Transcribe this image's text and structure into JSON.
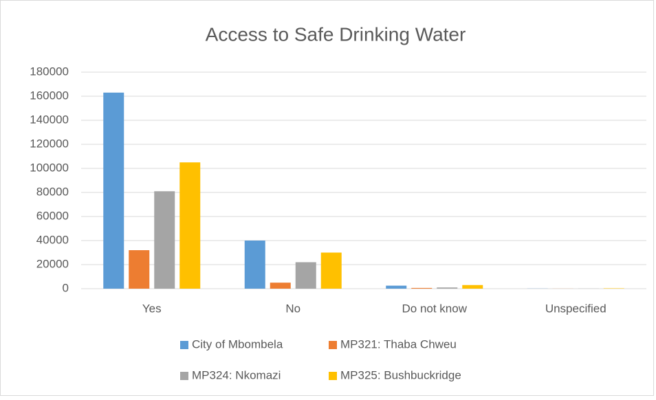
{
  "chart_data": {
    "type": "bar",
    "title": "Access to Safe Drinking Water",
    "categories": [
      "Yes",
      "No",
      "Do not know",
      "Unspecified"
    ],
    "series": [
      {
        "name": "City of Mbombela",
        "color": "#5b9bd5",
        "values": [
          163000,
          40000,
          2500,
          100
        ]
      },
      {
        "name": "MP321: Thaba Chweu",
        "color": "#ed7d31",
        "values": [
          32000,
          5000,
          600,
          50
        ]
      },
      {
        "name": "MP324: Nkomazi",
        "color": "#a5a5a5",
        "values": [
          81000,
          22000,
          1000,
          100
        ]
      },
      {
        "name": "MP325: Bushbuckridge",
        "color": "#ffc000",
        "values": [
          105000,
          30000,
          3000,
          300
        ]
      }
    ],
    "ylim": [
      0,
      180000
    ],
    "yticks": [
      0,
      20000,
      40000,
      60000,
      80000,
      100000,
      120000,
      140000,
      160000,
      180000
    ],
    "grid": true,
    "legend": "bottom"
  }
}
